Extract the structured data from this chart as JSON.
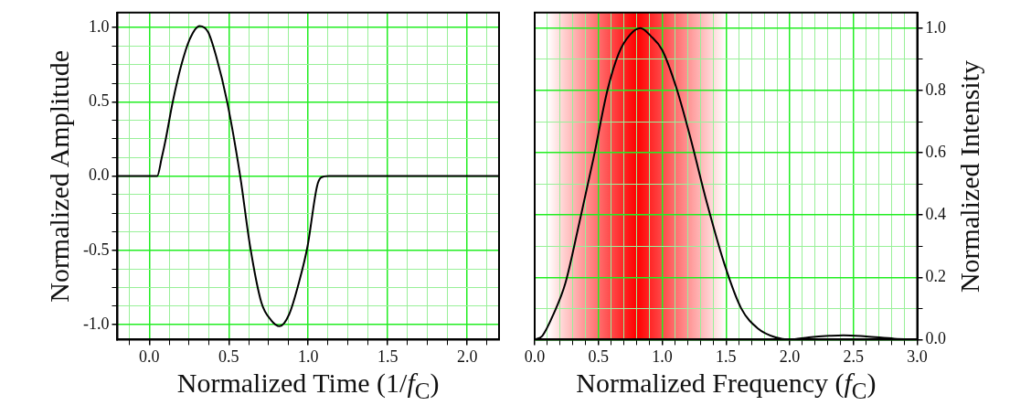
{
  "chart_data": [
    {
      "type": "line",
      "xlabel": "Normalized Time (1/f$_{C}$)",
      "ylabel": "Normalized Amplitude",
      "x": [
        -0.2,
        0.0,
        0.05,
        0.078,
        0.104,
        0.148,
        0.2,
        0.254,
        0.316,
        0.37,
        0.42,
        0.49,
        0.572,
        0.634,
        0.705,
        0.767,
        0.82,
        0.88,
        0.943,
        0.996,
        1.055,
        1.081,
        1.13,
        1.5,
        2.0,
        2.2
      ],
      "series": [
        {
          "color": "#000000",
          "values": [
            0,
            0,
            0,
            0.12,
            0.25,
            0.5,
            0.74,
            0.92,
            1.01,
            0.97,
            0.81,
            0.5,
            0,
            -0.47,
            -0.85,
            -0.97,
            -1.01,
            -0.93,
            -0.71,
            -0.47,
            -0.07,
            -0.01,
            0,
            0,
            0,
            0
          ]
        }
      ],
      "xlim": [
        -0.2,
        2.2
      ],
      "xticks": [
        {
          "value": -0.125,
          "label": null
        },
        {
          "value": 0,
          "label": "0.0"
        },
        {
          "value": 0.125,
          "label": null
        },
        {
          "value": 0.25,
          "label": null
        },
        {
          "value": 0.375,
          "label": null
        },
        {
          "value": 0.5,
          "label": "0.5"
        },
        {
          "value": 0.625,
          "label": null
        },
        {
          "value": 0.75,
          "label": null
        },
        {
          "value": 0.875,
          "label": null
        },
        {
          "value": 1,
          "label": "1.0"
        },
        {
          "value": 1.125,
          "label": null
        },
        {
          "value": 1.25,
          "label": null
        },
        {
          "value": 1.375,
          "label": null
        },
        {
          "value": 1.5,
          "label": "1.5"
        },
        {
          "value": 1.625,
          "label": null
        },
        {
          "value": 1.75,
          "label": null
        },
        {
          "value": 1.875,
          "label": null
        },
        {
          "value": 2,
          "label": "2.0"
        },
        {
          "value": 2.125,
          "label": null
        }
      ],
      "ylim": [
        -1.1,
        1.1
      ],
      "yticks": [
        {
          "value": -1,
          "label": "-1.0"
        },
        {
          "value": -0.875,
          "label": null
        },
        {
          "value": -0.75,
          "label": null
        },
        {
          "value": -0.625,
          "label": null
        },
        {
          "value": -0.5,
          "label": "-0.5"
        },
        {
          "value": -0.375,
          "label": null
        },
        {
          "value": -0.25,
          "label": null
        },
        {
          "value": -0.125,
          "label": null
        },
        {
          "value": 0,
          "label": "0.0"
        },
        {
          "value": 0.125,
          "label": null
        },
        {
          "value": 0.25,
          "label": null
        },
        {
          "value": 0.375,
          "label": null
        },
        {
          "value": 0.5,
          "label": "0.5"
        },
        {
          "value": 0.625,
          "label": null
        },
        {
          "value": 0.75,
          "label": null
        },
        {
          "value": 0.875,
          "label": null
        },
        {
          "value": 1,
          "label": "1.0"
        }
      ],
      "grid": true
    },
    {
      "type": "line",
      "xlabel": "Normalized Frequency (f$_{C}$)",
      "y2label": "Normalized Intensity",
      "x": [
        0,
        0.06,
        0.15,
        0.24,
        0.35,
        0.46,
        0.57,
        0.66,
        0.75,
        0.83,
        0.91,
        1.0,
        1.11,
        1.22,
        1.35,
        1.49,
        1.62,
        1.75,
        1.89,
        2.0,
        2.15,
        2.31,
        2.42,
        2.6,
        2.82,
        3.0
      ],
      "series": [
        {
          "color": "#000000",
          "axis": "y2",
          "values": [
            0,
            0.012,
            0.084,
            0.18,
            0.375,
            0.58,
            0.8,
            0.92,
            0.98,
            1.0,
            0.975,
            0.93,
            0.81,
            0.65,
            0.44,
            0.24,
            0.1,
            0.036,
            0.007,
            0,
            0.007,
            0.012,
            0.014,
            0.01,
            0.003,
            0
          ]
        }
      ],
      "bands": [
        {
          "axis": "x",
          "from": 0.1,
          "to": 1.5,
          "color": "#ff0000"
        }
      ],
      "xlim": [
        0,
        3.0
      ],
      "xticks": [
        {
          "value": 0,
          "label": "0.0"
        },
        {
          "value": 0.1,
          "label": null
        },
        {
          "value": 0.2,
          "label": null
        },
        {
          "value": 0.3,
          "label": null
        },
        {
          "value": 0.4,
          "label": null
        },
        {
          "value": 0.5,
          "label": "0.5"
        },
        {
          "value": 0.6,
          "label": null
        },
        {
          "value": 0.7,
          "label": null
        },
        {
          "value": 0.8,
          "label": null
        },
        {
          "value": 0.9,
          "label": null
        },
        {
          "value": 1,
          "label": "1.0"
        },
        {
          "value": 1.1,
          "label": null
        },
        {
          "value": 1.2,
          "label": null
        },
        {
          "value": 1.3,
          "label": null
        },
        {
          "value": 1.4,
          "label": null
        },
        {
          "value": 1.5,
          "label": "1.5"
        },
        {
          "value": 1.6,
          "label": null
        },
        {
          "value": 1.7,
          "label": null
        },
        {
          "value": 1.8,
          "label": null
        },
        {
          "value": 1.9,
          "label": null
        },
        {
          "value": 2,
          "label": "2.0"
        },
        {
          "value": 2.1,
          "label": null
        },
        {
          "value": 2.2,
          "label": null
        },
        {
          "value": 2.3,
          "label": null
        },
        {
          "value": 2.4,
          "label": null
        },
        {
          "value": 2.5,
          "label": "2.5"
        },
        {
          "value": 2.6,
          "label": null
        },
        {
          "value": 2.7,
          "label": null
        },
        {
          "value": 2.8,
          "label": null
        },
        {
          "value": 2.9,
          "label": null
        },
        {
          "value": 3,
          "label": "3.0"
        }
      ],
      "y2lim": [
        0,
        1.05
      ],
      "y2ticks": [
        {
          "value": 0,
          "label": "0.0"
        },
        {
          "value": 0.1,
          "label": null
        },
        {
          "value": 0.2,
          "label": "0.2"
        },
        {
          "value": 0.3,
          "label": null
        },
        {
          "value": 0.4,
          "label": "0.4"
        },
        {
          "value": 0.5,
          "label": null
        },
        {
          "value": 0.6,
          "label": "0.6"
        },
        {
          "value": 0.7,
          "label": null
        },
        {
          "value": 0.8,
          "label": "0.8"
        },
        {
          "value": 0.9,
          "label": null
        },
        {
          "value": 1,
          "label": "1.0"
        }
      ],
      "grid": true
    }
  ]
}
